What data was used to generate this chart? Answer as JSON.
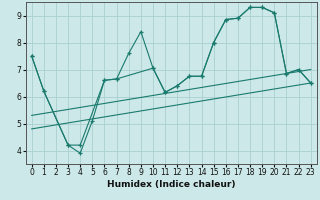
{
  "xlabel": "Humidex (Indice chaleur)",
  "bg_color": "#cce8e8",
  "grid_color": "#aad0d0",
  "line_color": "#1a7a6e",
  "xlim": [
    -0.5,
    23.5
  ],
  "ylim": [
    3.5,
    9.5
  ],
  "xticks": [
    0,
    1,
    2,
    3,
    4,
    5,
    6,
    7,
    8,
    9,
    10,
    11,
    12,
    13,
    14,
    15,
    16,
    17,
    18,
    19,
    20,
    21,
    22,
    23
  ],
  "yticks": [
    4,
    5,
    6,
    7,
    8,
    9
  ],
  "series": [
    {
      "x": [
        0,
        1,
        3,
        4,
        5,
        6,
        7,
        8,
        9,
        10,
        11,
        12,
        13,
        14,
        15,
        16,
        17,
        18,
        19,
        20,
        21,
        22,
        23
      ],
      "y": [
        7.5,
        6.2,
        4.2,
        3.9,
        5.1,
        6.6,
        6.65,
        7.6,
        8.4,
        7.05,
        6.15,
        6.4,
        6.75,
        6.75,
        8.0,
        8.85,
        8.9,
        9.3,
        9.3,
        9.1,
        6.85,
        7.0,
        6.5
      ]
    },
    {
      "x": [
        0,
        1,
        3,
        4,
        6,
        7,
        10,
        11,
        12,
        13,
        14,
        15,
        16,
        17,
        18,
        19,
        20,
        21,
        22,
        23
      ],
      "y": [
        7.5,
        6.2,
        4.2,
        4.2,
        6.6,
        6.65,
        7.05,
        6.15,
        6.4,
        6.75,
        6.75,
        8.0,
        8.85,
        8.9,
        9.3,
        9.3,
        9.1,
        6.85,
        7.0,
        6.5
      ]
    },
    {
      "x": [
        0,
        23
      ],
      "y": [
        4.8,
        6.5
      ]
    },
    {
      "x": [
        0,
        23
      ],
      "y": [
        5.3,
        7.0
      ]
    }
  ]
}
